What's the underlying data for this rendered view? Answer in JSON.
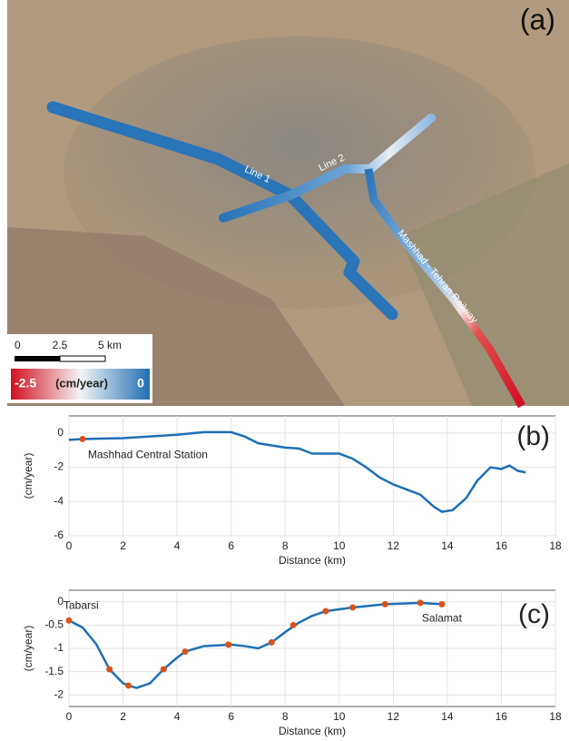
{
  "map": {
    "panel_label": "(a)",
    "line_labels": [
      "Line 1",
      "Line 2",
      "Mashhad - Tehran Railway"
    ],
    "scale_labels": [
      "0",
      "2.5",
      "5 km"
    ],
    "colorbar": {
      "min": -2.5,
      "max": 0,
      "label": "(cm/year)"
    }
  },
  "chart_data": [
    {
      "type": "line",
      "panel_label": "(b)",
      "xlabel": "Distance (km)",
      "ylabel": "(cm/year)",
      "xlim": [
        0,
        18
      ],
      "xticks": [
        0,
        2,
        4,
        6,
        8,
        10,
        12,
        14,
        16,
        18
      ],
      "ylim": [
        -6,
        1
      ],
      "yticks": [
        -6,
        -4,
        -2,
        0
      ],
      "grid": true,
      "annotations": [
        "Mashhad Central Station"
      ],
      "series": [
        {
          "color": "#1f6fb5",
          "x": [
            0,
            0.5,
            2,
            3,
            4,
            5,
            6,
            6.5,
            7,
            8,
            8.5,
            9,
            10,
            10.5,
            11,
            11.5,
            12,
            12.5,
            13,
            13.5,
            13.8,
            14.2,
            14.7,
            15.1,
            15.6,
            16,
            16.3,
            16.6,
            16.9
          ],
          "values": [
            -0.4,
            -0.35,
            -0.3,
            -0.2,
            -0.1,
            0.05,
            0.05,
            -0.2,
            -0.6,
            -0.85,
            -0.9,
            -1.2,
            -1.2,
            -1.5,
            -2,
            -2.6,
            -3,
            -3.3,
            -3.6,
            -4.3,
            -4.6,
            -4.5,
            -3.8,
            -2.8,
            -2,
            -2.1,
            -1.9,
            -2.2,
            -2.3
          ]
        },
        {
          "color": "#d95319",
          "style": "markers",
          "x": [
            0.5
          ],
          "values": [
            -0.35
          ]
        }
      ]
    },
    {
      "type": "line",
      "panel_label": "(c)",
      "xlabel": "Distance (km)",
      "ylabel": "(cm/year)",
      "xlim": [
        0,
        18
      ],
      "xticks": [
        0,
        2,
        4,
        6,
        8,
        10,
        12,
        14,
        16,
        18
      ],
      "ylim": [
        -2.25,
        0.25
      ],
      "yticks": [
        -2,
        -1.5,
        -1,
        -0.5,
        0
      ],
      "grid": true,
      "annotations": [
        "Tabarsi",
        "Salamat"
      ],
      "series": [
        {
          "color": "#1f6fb5",
          "x": [
            0,
            0.5,
            1,
            1.5,
            2,
            2.2,
            2.5,
            3,
            3.5,
            4,
            4.3,
            5,
            6,
            6.5,
            7,
            7.5,
            8,
            8.5,
            9,
            9.5,
            10.5,
            11.7,
            13,
            13.8
          ],
          "values": [
            -0.4,
            -0.55,
            -0.9,
            -1.45,
            -1.75,
            -1.8,
            -1.85,
            -1.75,
            -1.45,
            -1.2,
            -1.07,
            -0.95,
            -0.92,
            -0.95,
            -1,
            -0.87,
            -0.65,
            -0.45,
            -0.3,
            -0.2,
            -0.12,
            -0.05,
            -0.02,
            -0.05
          ]
        },
        {
          "color": "#d95319",
          "style": "markers",
          "x": [
            0,
            1.5,
            2.2,
            3.5,
            4.3,
            5.9,
            7.5,
            8.3,
            9.5,
            10.5,
            11.7,
            13,
            13.8
          ],
          "values": [
            -0.4,
            -1.45,
            -1.8,
            -1.45,
            -1.07,
            -0.92,
            -0.87,
            -0.5,
            -0.2,
            -0.12,
            -0.05,
            -0.02,
            -0.05
          ]
        }
      ]
    }
  ]
}
